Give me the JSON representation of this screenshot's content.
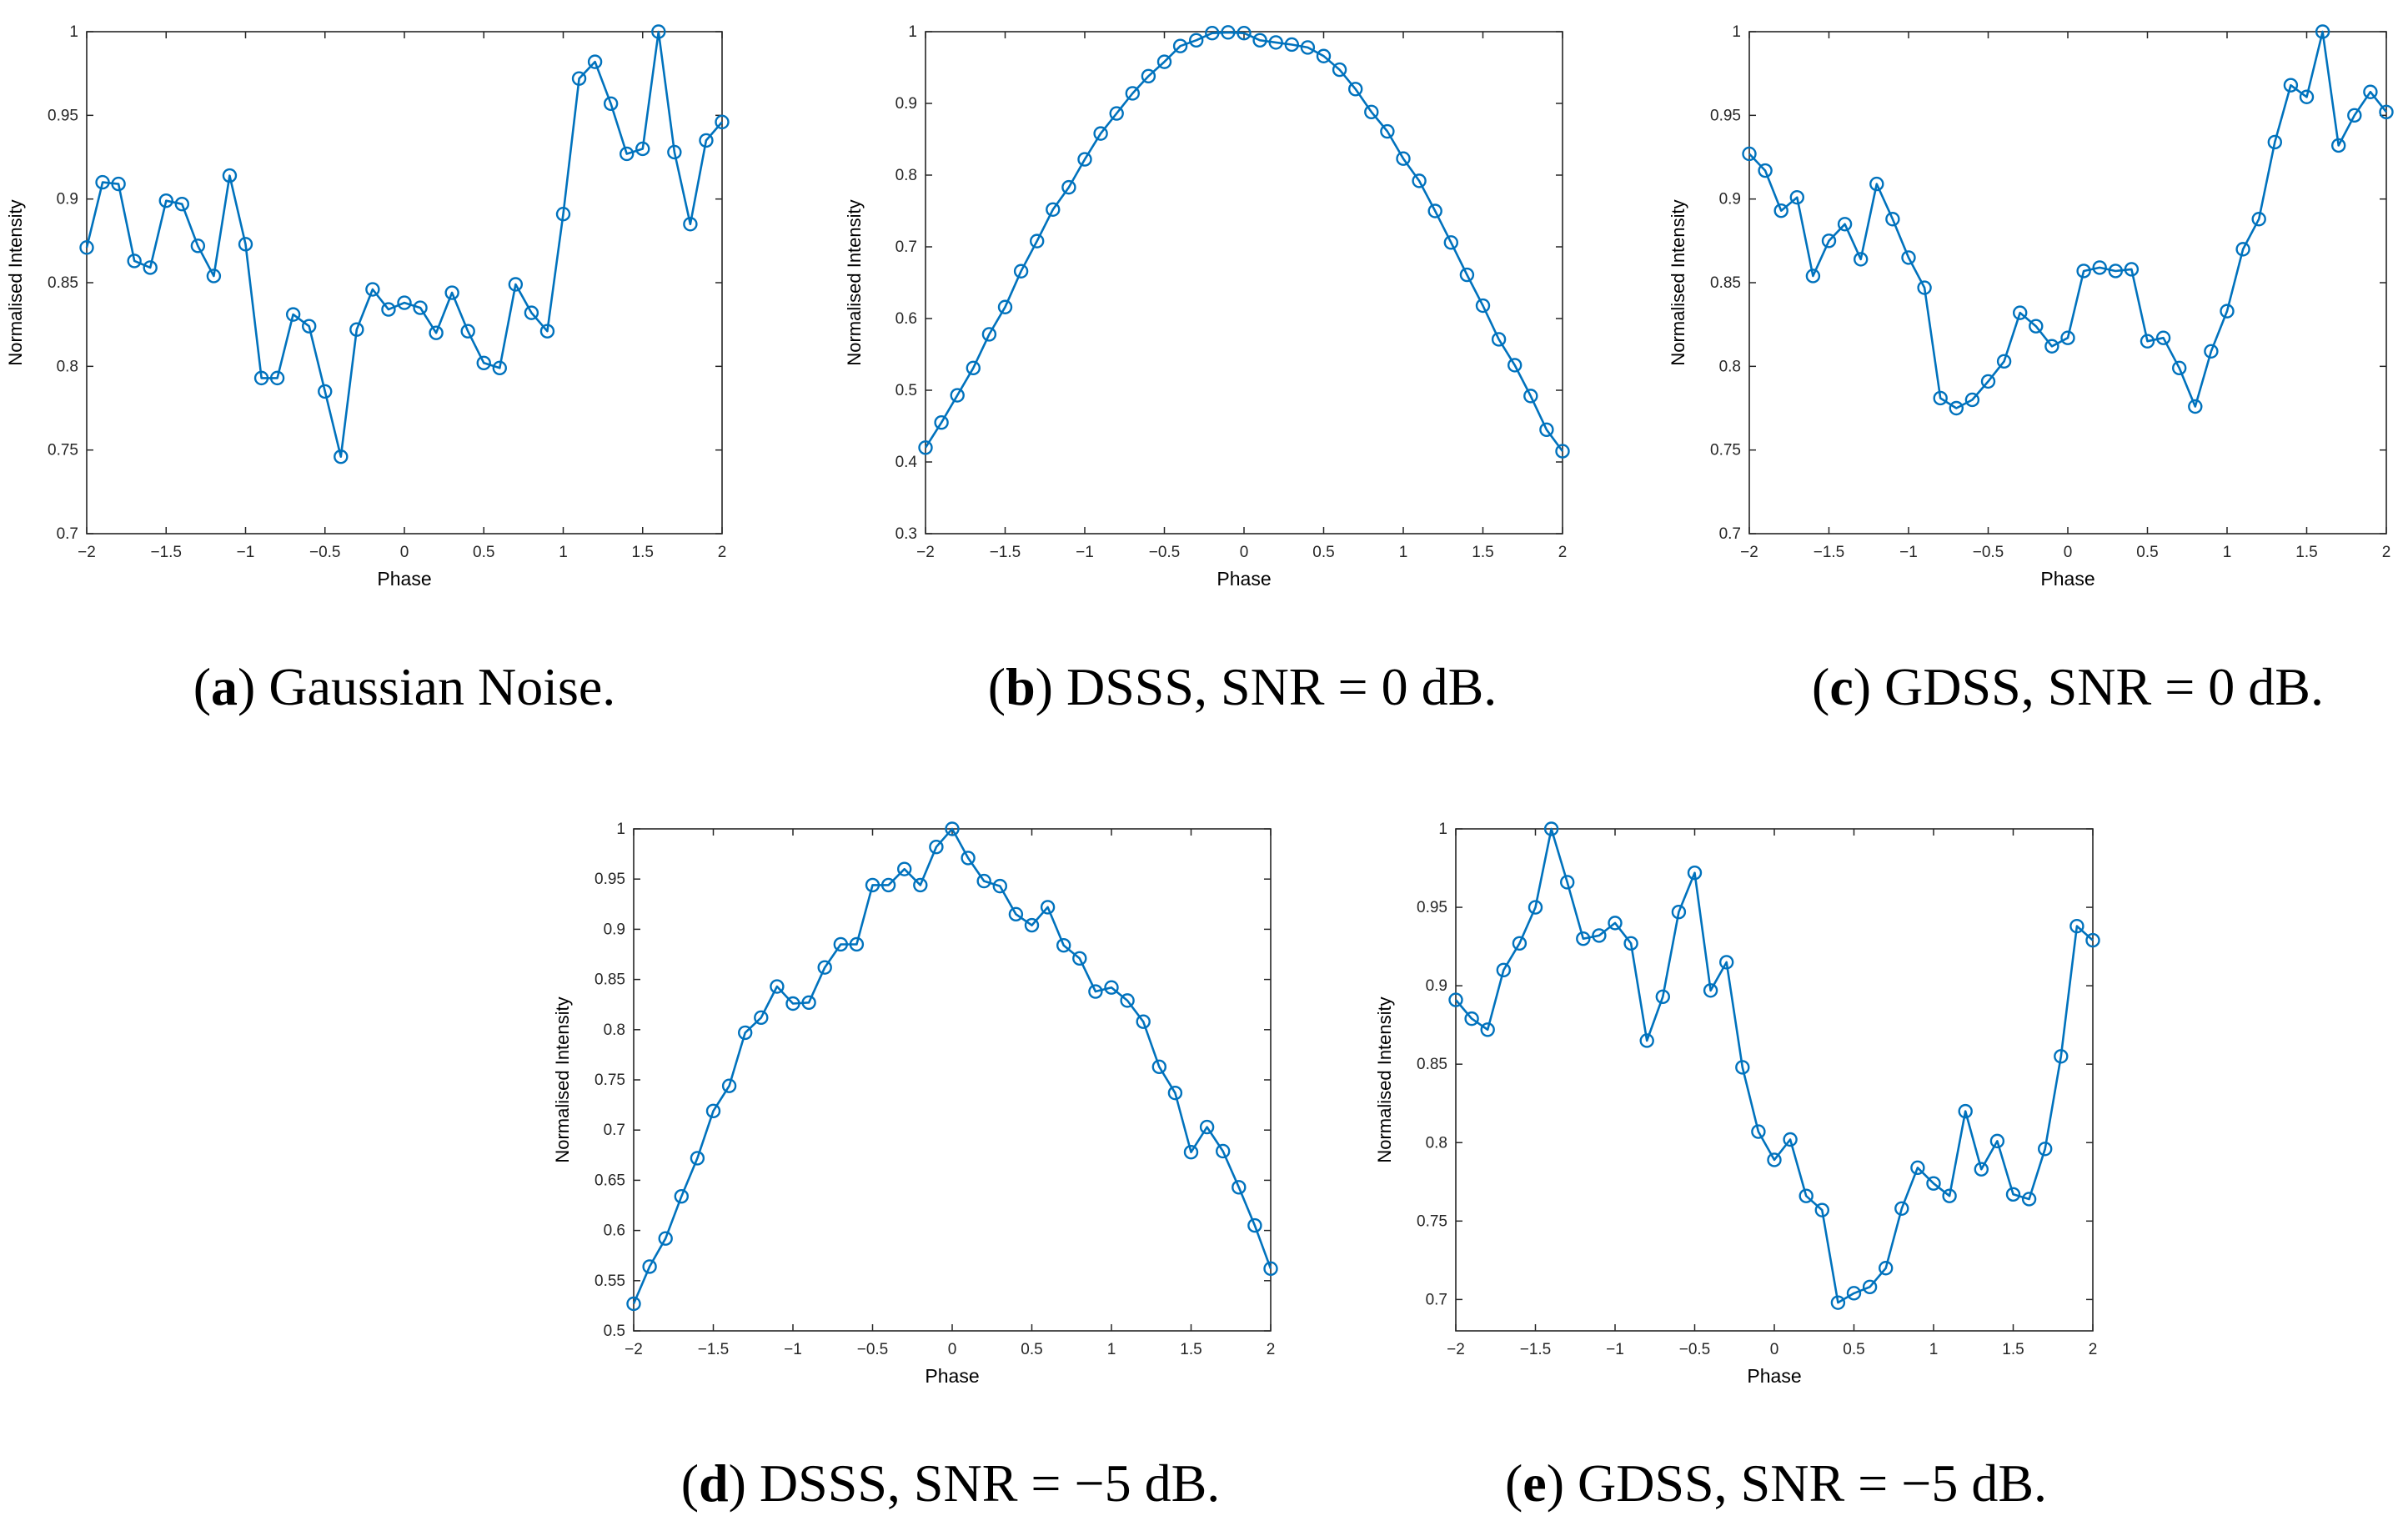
{
  "colors": {
    "line": "#0072BD",
    "axis": "#262626",
    "text": "#000000"
  },
  "chart_data": [
    {
      "id": "a",
      "type": "line",
      "caption_letter": "a",
      "caption_text": ") Gaussian Noise.",
      "xlabel": "Phase",
      "ylabel": "Normalised Intensity",
      "xlim": [
        -2,
        2
      ],
      "ylim": [
        0.7,
        1
      ],
      "xticks": [
        -2,
        -1.5,
        -1,
        -0.5,
        0,
        0.5,
        1,
        1.5,
        2
      ],
      "xtick_labels": [
        "−2",
        "−1.5",
        "−1",
        "−0.5",
        "0",
        "0.5",
        "1",
        "1.5",
        "2"
      ],
      "yticks": [
        0.7,
        0.75,
        0.8,
        0.85,
        0.9,
        0.95,
        1
      ],
      "ytick_labels": [
        "0.7",
        "0.75",
        "0.8",
        "0.85",
        "0.9",
        "0.95",
        "1"
      ],
      "x": [
        -2,
        -1.9,
        -1.8,
        -1.7,
        -1.6,
        -1.5,
        -1.4,
        -1.3,
        -1.2,
        -1.1,
        -1,
        -0.9,
        -0.8,
        -0.7,
        -0.6,
        -0.5,
        -0.4,
        -0.3,
        -0.2,
        -0.1,
        0,
        0.1,
        0.2,
        0.3,
        0.4,
        0.5,
        0.6,
        0.7,
        0.8,
        0.9,
        1,
        1.1,
        1.2,
        1.3,
        1.4,
        1.5,
        1.6,
        1.7,
        1.8,
        1.9,
        2
      ],
      "y": [
        0.871,
        0.91,
        0.909,
        0.863,
        0.859,
        0.899,
        0.897,
        0.872,
        0.854,
        0.914,
        0.873,
        0.793,
        0.793,
        0.831,
        0.824,
        0.785,
        0.746,
        0.822,
        0.846,
        0.834,
        0.838,
        0.835,
        0.82,
        0.844,
        0.821,
        0.802,
        0.799,
        0.849,
        0.832,
        0.821,
        0.891,
        0.972,
        0.982,
        0.957,
        0.927,
        0.93,
        1.0,
        0.928,
        0.885,
        0.935,
        0.946
      ]
    },
    {
      "id": "b",
      "type": "line",
      "caption_letter": "b",
      "caption_text": ")  DSSS, SNR = 0 dB.",
      "xlabel": "Phase",
      "ylabel": "Normalised Intensity",
      "xlim": [
        -2,
        2
      ],
      "ylim": [
        0.3,
        1
      ],
      "xticks": [
        -2,
        -1.5,
        -1,
        -0.5,
        0,
        0.5,
        1,
        1.5,
        2
      ],
      "xtick_labels": [
        "−2",
        "−1.5",
        "−1",
        "−0.5",
        "0",
        "0.5",
        "1",
        "1.5",
        "2"
      ],
      "yticks": [
        0.3,
        0.4,
        0.5,
        0.6,
        0.7,
        0.8,
        0.9,
        1
      ],
      "ytick_labels": [
        "0.3",
        "0.4",
        "0.5",
        "0.6",
        "0.7",
        "0.8",
        "0.9",
        "1"
      ],
      "x": [
        -2,
        -1.9,
        -1.8,
        -1.7,
        -1.6,
        -1.5,
        -1.4,
        -1.3,
        -1.2,
        -1.1,
        -1,
        -0.9,
        -0.8,
        -0.7,
        -0.6,
        -0.5,
        -0.4,
        -0.3,
        -0.2,
        -0.1,
        0,
        0.1,
        0.2,
        0.3,
        0.4,
        0.5,
        0.6,
        0.7,
        0.8,
        0.9,
        1,
        1.1,
        1.2,
        1.3,
        1.4,
        1.5,
        1.6,
        1.7,
        1.8,
        1.9,
        2
      ],
      "y": [
        0.42,
        0.455,
        0.493,
        0.531,
        0.578,
        0.616,
        0.666,
        0.708,
        0.752,
        0.783,
        0.822,
        0.858,
        0.886,
        0.914,
        0.938,
        0.958,
        0.98,
        0.988,
        0.998,
        0.999,
        0.998,
        0.988,
        0.985,
        0.982,
        0.978,
        0.966,
        0.947,
        0.92,
        0.888,
        0.861,
        0.823,
        0.792,
        0.75,
        0.706,
        0.661,
        0.618,
        0.571,
        0.535,
        0.492,
        0.445,
        0.415
      ]
    },
    {
      "id": "c",
      "type": "line",
      "caption_letter": "c",
      "caption_text": ") GDSS, SNR = 0 dB.",
      "xlabel": "Phase",
      "ylabel": "Normalised Intensity",
      "xlim": [
        -2,
        2
      ],
      "ylim": [
        0.7,
        1
      ],
      "xticks": [
        -2,
        -1.5,
        -1,
        -0.5,
        0,
        0.5,
        1,
        1.5,
        2
      ],
      "xtick_labels": [
        "−2",
        "−1.5",
        "−1",
        "−0.5",
        "0",
        "0.5",
        "1",
        "1.5",
        "2"
      ],
      "yticks": [
        0.7,
        0.75,
        0.8,
        0.85,
        0.9,
        0.95,
        1
      ],
      "ytick_labels": [
        "0.7",
        "0.75",
        "0.8",
        "0.85",
        "0.9",
        "0.95",
        "1"
      ],
      "x": [
        -2,
        -1.9,
        -1.8,
        -1.7,
        -1.6,
        -1.5,
        -1.4,
        -1.3,
        -1.2,
        -1.1,
        -1,
        -0.9,
        -0.8,
        -0.7,
        -0.6,
        -0.5,
        -0.4,
        -0.3,
        -0.2,
        -0.1,
        0,
        0.1,
        0.2,
        0.3,
        0.4,
        0.5,
        0.6,
        0.7,
        0.8,
        0.9,
        1,
        1.1,
        1.2,
        1.3,
        1.4,
        1.5,
        1.6,
        1.7,
        1.8,
        1.9,
        2
      ],
      "y": [
        0.927,
        0.917,
        0.893,
        0.901,
        0.854,
        0.875,
        0.885,
        0.864,
        0.909,
        0.888,
        0.865,
        0.847,
        0.781,
        0.775,
        0.78,
        0.791,
        0.803,
        0.832,
        0.824,
        0.812,
        0.817,
        0.857,
        0.859,
        0.857,
        0.858,
        0.815,
        0.817,
        0.799,
        0.776,
        0.809,
        0.833,
        0.87,
        0.888,
        0.934,
        0.968,
        0.961,
        1.0,
        0.932,
        0.95,
        0.964,
        0.952
      ]
    },
    {
      "id": "d",
      "type": "line",
      "caption_letter": "d",
      "caption_text": ") DSSS, SNR = −5 dB.",
      "xlabel": "Phase",
      "ylabel": "Normalised Intensity",
      "xlim": [
        -2,
        2
      ],
      "ylim": [
        0.5,
        1
      ],
      "xticks": [
        -2,
        -1.5,
        -1,
        -0.5,
        0,
        0.5,
        1,
        1.5,
        2
      ],
      "xtick_labels": [
        "−2",
        "−1.5",
        "−1",
        "−0.5",
        "0",
        "0.5",
        "1",
        "1.5",
        "2"
      ],
      "yticks": [
        0.5,
        0.55,
        0.6,
        0.65,
        0.7,
        0.75,
        0.8,
        0.85,
        0.9,
        0.95,
        1
      ],
      "ytick_labels": [
        "0.5",
        "0.55",
        "0.6",
        "0.65",
        "0.7",
        "0.75",
        "0.8",
        "0.85",
        "0.9",
        "0.95",
        "1"
      ],
      "x": [
        -2,
        -1.9,
        -1.8,
        -1.7,
        -1.6,
        -1.5,
        -1.4,
        -1.3,
        -1.2,
        -1.1,
        -1,
        -0.9,
        -0.8,
        -0.7,
        -0.6,
        -0.5,
        -0.4,
        -0.3,
        -0.2,
        -0.1,
        0,
        0.1,
        0.2,
        0.3,
        0.4,
        0.5,
        0.6,
        0.7,
        0.8,
        0.9,
        1,
        1.1,
        1.2,
        1.3,
        1.4,
        1.5,
        1.6,
        1.7,
        1.8,
        1.9,
        2
      ],
      "y": [
        0.527,
        0.564,
        0.592,
        0.634,
        0.672,
        0.719,
        0.744,
        0.797,
        0.812,
        0.843,
        0.826,
        0.827,
        0.862,
        0.885,
        0.885,
        0.944,
        0.944,
        0.96,
        0.944,
        0.982,
        1.0,
        0.971,
        0.948,
        0.943,
        0.915,
        0.904,
        0.922,
        0.884,
        0.871,
        0.838,
        0.842,
        0.829,
        0.808,
        0.763,
        0.737,
        0.678,
        0.703,
        0.679,
        0.643,
        0.605,
        0.562
      ]
    },
    {
      "id": "e",
      "type": "line",
      "caption_letter": "e",
      "caption_text": ") GDSS, SNR = −5 dB.",
      "xlabel": "Phase",
      "ylabel": "Normalised Intensity",
      "xlim": [
        -2,
        2
      ],
      "ylim": [
        0.68,
        1
      ],
      "xticks": [
        -2,
        -1.5,
        -1,
        -0.5,
        0,
        0.5,
        1,
        1.5,
        2
      ],
      "xtick_labels": [
        "−2",
        "−1.5",
        "−1",
        "−0.5",
        "0",
        "0.5",
        "1",
        "1.5",
        "2"
      ],
      "yticks": [
        0.7,
        0.75,
        0.8,
        0.85,
        0.9,
        0.95,
        1
      ],
      "ytick_labels": [
        "0.7",
        "0.75",
        "0.8",
        "0.85",
        "0.9",
        "0.95",
        "1"
      ],
      "x": [
        -2,
        -1.9,
        -1.8,
        -1.7,
        -1.6,
        -1.5,
        -1.4,
        -1.3,
        -1.2,
        -1.1,
        -1,
        -0.9,
        -0.8,
        -0.7,
        -0.6,
        -0.5,
        -0.4,
        -0.3,
        -0.2,
        -0.1,
        0,
        0.1,
        0.2,
        0.3,
        0.4,
        0.5,
        0.6,
        0.7,
        0.8,
        0.9,
        1,
        1.1,
        1.2,
        1.3,
        1.4,
        1.5,
        1.6,
        1.7,
        1.8,
        1.9,
        2
      ],
      "y": [
        0.891,
        0.879,
        0.872,
        0.91,
        0.927,
        0.95,
        1.0,
        0.966,
        0.93,
        0.932,
        0.94,
        0.927,
        0.865,
        0.893,
        0.947,
        0.972,
        0.897,
        0.915,
        0.848,
        0.807,
        0.789,
        0.802,
        0.766,
        0.757,
        0.698,
        0.704,
        0.708,
        0.72,
        0.758,
        0.784,
        0.774,
        0.766,
        0.82,
        0.783,
        0.801,
        0.767,
        0.764,
        0.796,
        0.855,
        0.938,
        0.929
      ]
    }
  ]
}
